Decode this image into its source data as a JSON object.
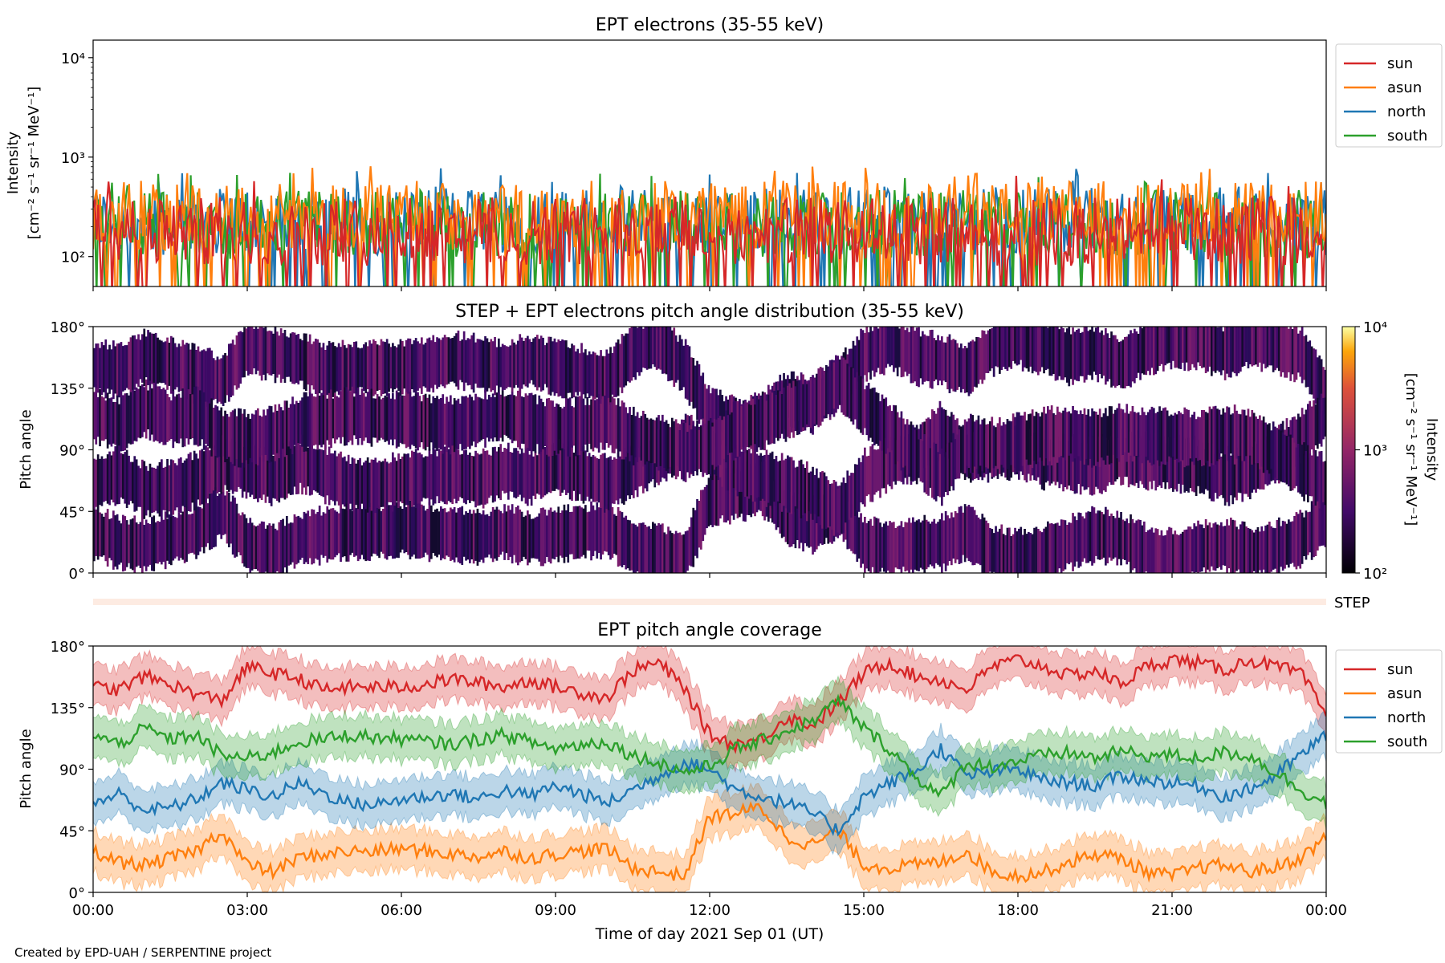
{
  "footer": "Created by EPD-UAH / SERPENTINE project",
  "colors": {
    "sun": "#d62728",
    "asun": "#ff7f0e",
    "north": "#1f77b4",
    "south": "#2ca02c"
  },
  "chart_data": [
    {
      "type": "line",
      "title": "EPT electrons (35-55 keV)",
      "ylabel_line1": "Intensity",
      "ylabel_line2": "[cm⁻² s⁻¹ sr⁻¹ MeV⁻¹]",
      "yscale": "log",
      "ylim": [
        50,
        15000
      ],
      "yticks": [
        100,
        1000,
        10000
      ],
      "ytick_labels": [
        "10²",
        "10³",
        "10⁴"
      ],
      "xlim": [
        0,
        24
      ],
      "legend": "outside-right",
      "series_note": "noisy 1-min intensities, sun plotted on top",
      "series": [
        {
          "name": "sun",
          "key": "sun",
          "typical": 180,
          "peak": 650
        },
        {
          "name": "asun",
          "key": "asun",
          "typical": 260,
          "peak": 820
        },
        {
          "name": "north",
          "key": "north",
          "typical": 230,
          "peak": 780
        },
        {
          "name": "south",
          "key": "south",
          "typical": 210,
          "peak": 720
        }
      ]
    },
    {
      "type": "heatmap",
      "title": "STEP + EPT electrons pitch angle distribution (35-55 keV)",
      "ylabel": "Pitch angle",
      "ylim": [
        0,
        180
      ],
      "yticks": [
        0,
        45,
        90,
        135,
        180
      ],
      "ytick_labels": [
        "0°",
        "45°",
        "90°",
        "135°",
        "180°"
      ],
      "xlim": [
        0,
        24
      ],
      "colorbar": {
        "label_line1": "Intensity",
        "label_line2": "[cm⁻² s⁻¹ sr⁻¹ MeV⁻¹]",
        "scale": "log",
        "range": [
          100,
          10000
        ],
        "tick_labels": [
          "10²",
          "10³",
          "10⁴"
        ]
      },
      "step_label": "STEP"
    },
    {
      "type": "area",
      "title": "EPT pitch angle coverage",
      "ylabel": "Pitch angle",
      "xlabel": "Time of day 2021 Sep 01 (UT)",
      "ylim": [
        0,
        180
      ],
      "yticks": [
        0,
        45,
        90,
        135,
        180
      ],
      "ytick_labels": [
        "0°",
        "45°",
        "90°",
        "135°",
        "180°"
      ],
      "xlim": [
        0,
        24
      ],
      "xticks": [
        0,
        3,
        6,
        9,
        12,
        15,
        18,
        21,
        24
      ],
      "xtick_labels": [
        "00:00",
        "03:00",
        "06:00",
        "09:00",
        "12:00",
        "15:00",
        "18:00",
        "21:00",
        "00:00"
      ],
      "legend": "outside-right",
      "band_half_width_deg": 15,
      "series": [
        {
          "name": "sun",
          "key": "sun",
          "x": [
            0,
            0.5,
            1,
            1.5,
            2,
            2.5,
            3,
            3.5,
            4,
            4.5,
            5,
            5.5,
            6,
            6.5,
            7,
            7.5,
            8,
            8.5,
            9,
            9.5,
            10,
            10.5,
            11,
            11.5,
            12,
            12.5,
            13,
            13.5,
            14,
            14.5,
            15,
            15.5,
            16,
            16.5,
            17,
            17.5,
            18,
            18.5,
            19,
            19.5,
            20,
            20.5,
            21,
            21.5,
            22,
            22.5,
            23,
            23.5,
            24
          ],
          "y": [
            150,
            148,
            158,
            152,
            145,
            140,
            165,
            160,
            156,
            148,
            150,
            150,
            150,
            152,
            156,
            153,
            150,
            155,
            150,
            146,
            142,
            162,
            168,
            150,
            115,
            108,
            112,
            128,
            122,
            138,
            160,
            168,
            158,
            155,
            148,
            165,
            170,
            165,
            158,
            162,
            152,
            165,
            170,
            168,
            162,
            170,
            165,
            160,
            130
          ]
        },
        {
          "name": "asun",
          "key": "asun",
          "x": [
            0,
            0.5,
            1,
            1.5,
            2,
            2.5,
            3,
            3.5,
            4,
            4.5,
            5,
            5.5,
            6,
            6.5,
            7,
            7.5,
            8,
            8.5,
            9,
            9.5,
            10,
            10.5,
            11,
            11.5,
            12,
            12.5,
            13,
            13.5,
            14,
            14.5,
            15,
            15.5,
            16,
            16.5,
            17,
            17.5,
            18,
            18.5,
            19,
            19.5,
            20,
            20.5,
            21,
            21.5,
            22,
            22.5,
            23,
            23.5,
            24
          ],
          "y": [
            30,
            22,
            20,
            25,
            30,
            45,
            20,
            15,
            25,
            28,
            30,
            30,
            32,
            30,
            28,
            26,
            30,
            25,
            28,
            30,
            32,
            18,
            15,
            12,
            55,
            58,
            62,
            40,
            35,
            45,
            20,
            18,
            20,
            22,
            30,
            15,
            12,
            15,
            22,
            28,
            25,
            15,
            12,
            18,
            20,
            15,
            18,
            25,
            40
          ]
        },
        {
          "name": "north",
          "key": "north",
          "x": [
            0,
            0.5,
            1,
            1.5,
            2,
            2.5,
            3,
            3.5,
            4,
            4.5,
            5,
            5.5,
            6,
            6.5,
            7,
            7.5,
            8,
            8.5,
            9,
            9.5,
            10,
            10.5,
            11,
            11.5,
            12,
            12.5,
            13,
            13.5,
            14,
            14.5,
            15,
            15.5,
            16,
            16.5,
            17,
            17.5,
            18,
            18.5,
            19,
            19.5,
            20,
            20.5,
            21,
            21.5,
            22,
            22.5,
            23,
            23.5,
            24
          ],
          "y": [
            65,
            72,
            60,
            62,
            68,
            80,
            75,
            70,
            80,
            72,
            65,
            64,
            68,
            70,
            72,
            68,
            75,
            70,
            78,
            72,
            65,
            75,
            85,
            95,
            90,
            75,
            70,
            65,
            58,
            45,
            70,
            80,
            88,
            105,
            85,
            88,
            90,
            82,
            80,
            78,
            85,
            82,
            80,
            78,
            70,
            75,
            85,
            100,
            115
          ]
        },
        {
          "name": "south",
          "key": "south",
          "x": [
            0,
            0.5,
            1,
            1.5,
            2,
            2.5,
            3,
            3.5,
            4,
            4.5,
            5,
            5.5,
            6,
            6.5,
            7,
            7.5,
            8,
            8.5,
            9,
            9.5,
            10,
            10.5,
            11,
            11.5,
            12,
            12.5,
            13,
            13.5,
            14,
            14.5,
            15,
            15.5,
            16,
            16.5,
            17,
            17.5,
            18,
            18.5,
            19,
            19.5,
            20,
            20.5,
            21,
            21.5,
            22,
            22.5,
            23,
            23.5,
            24
          ],
          "y": [
            115,
            108,
            120,
            112,
            115,
            100,
            98,
            102,
            110,
            112,
            115,
            113,
            112,
            110,
            108,
            112,
            115,
            110,
            105,
            108,
            110,
            100,
            95,
            88,
            92,
            105,
            110,
            118,
            125,
            140,
            120,
            105,
            85,
            70,
            95,
            92,
            96,
            100,
            102,
            98,
            103,
            100,
            100,
            98,
            102,
            100,
            88,
            75,
            65
          ]
        }
      ]
    }
  ]
}
